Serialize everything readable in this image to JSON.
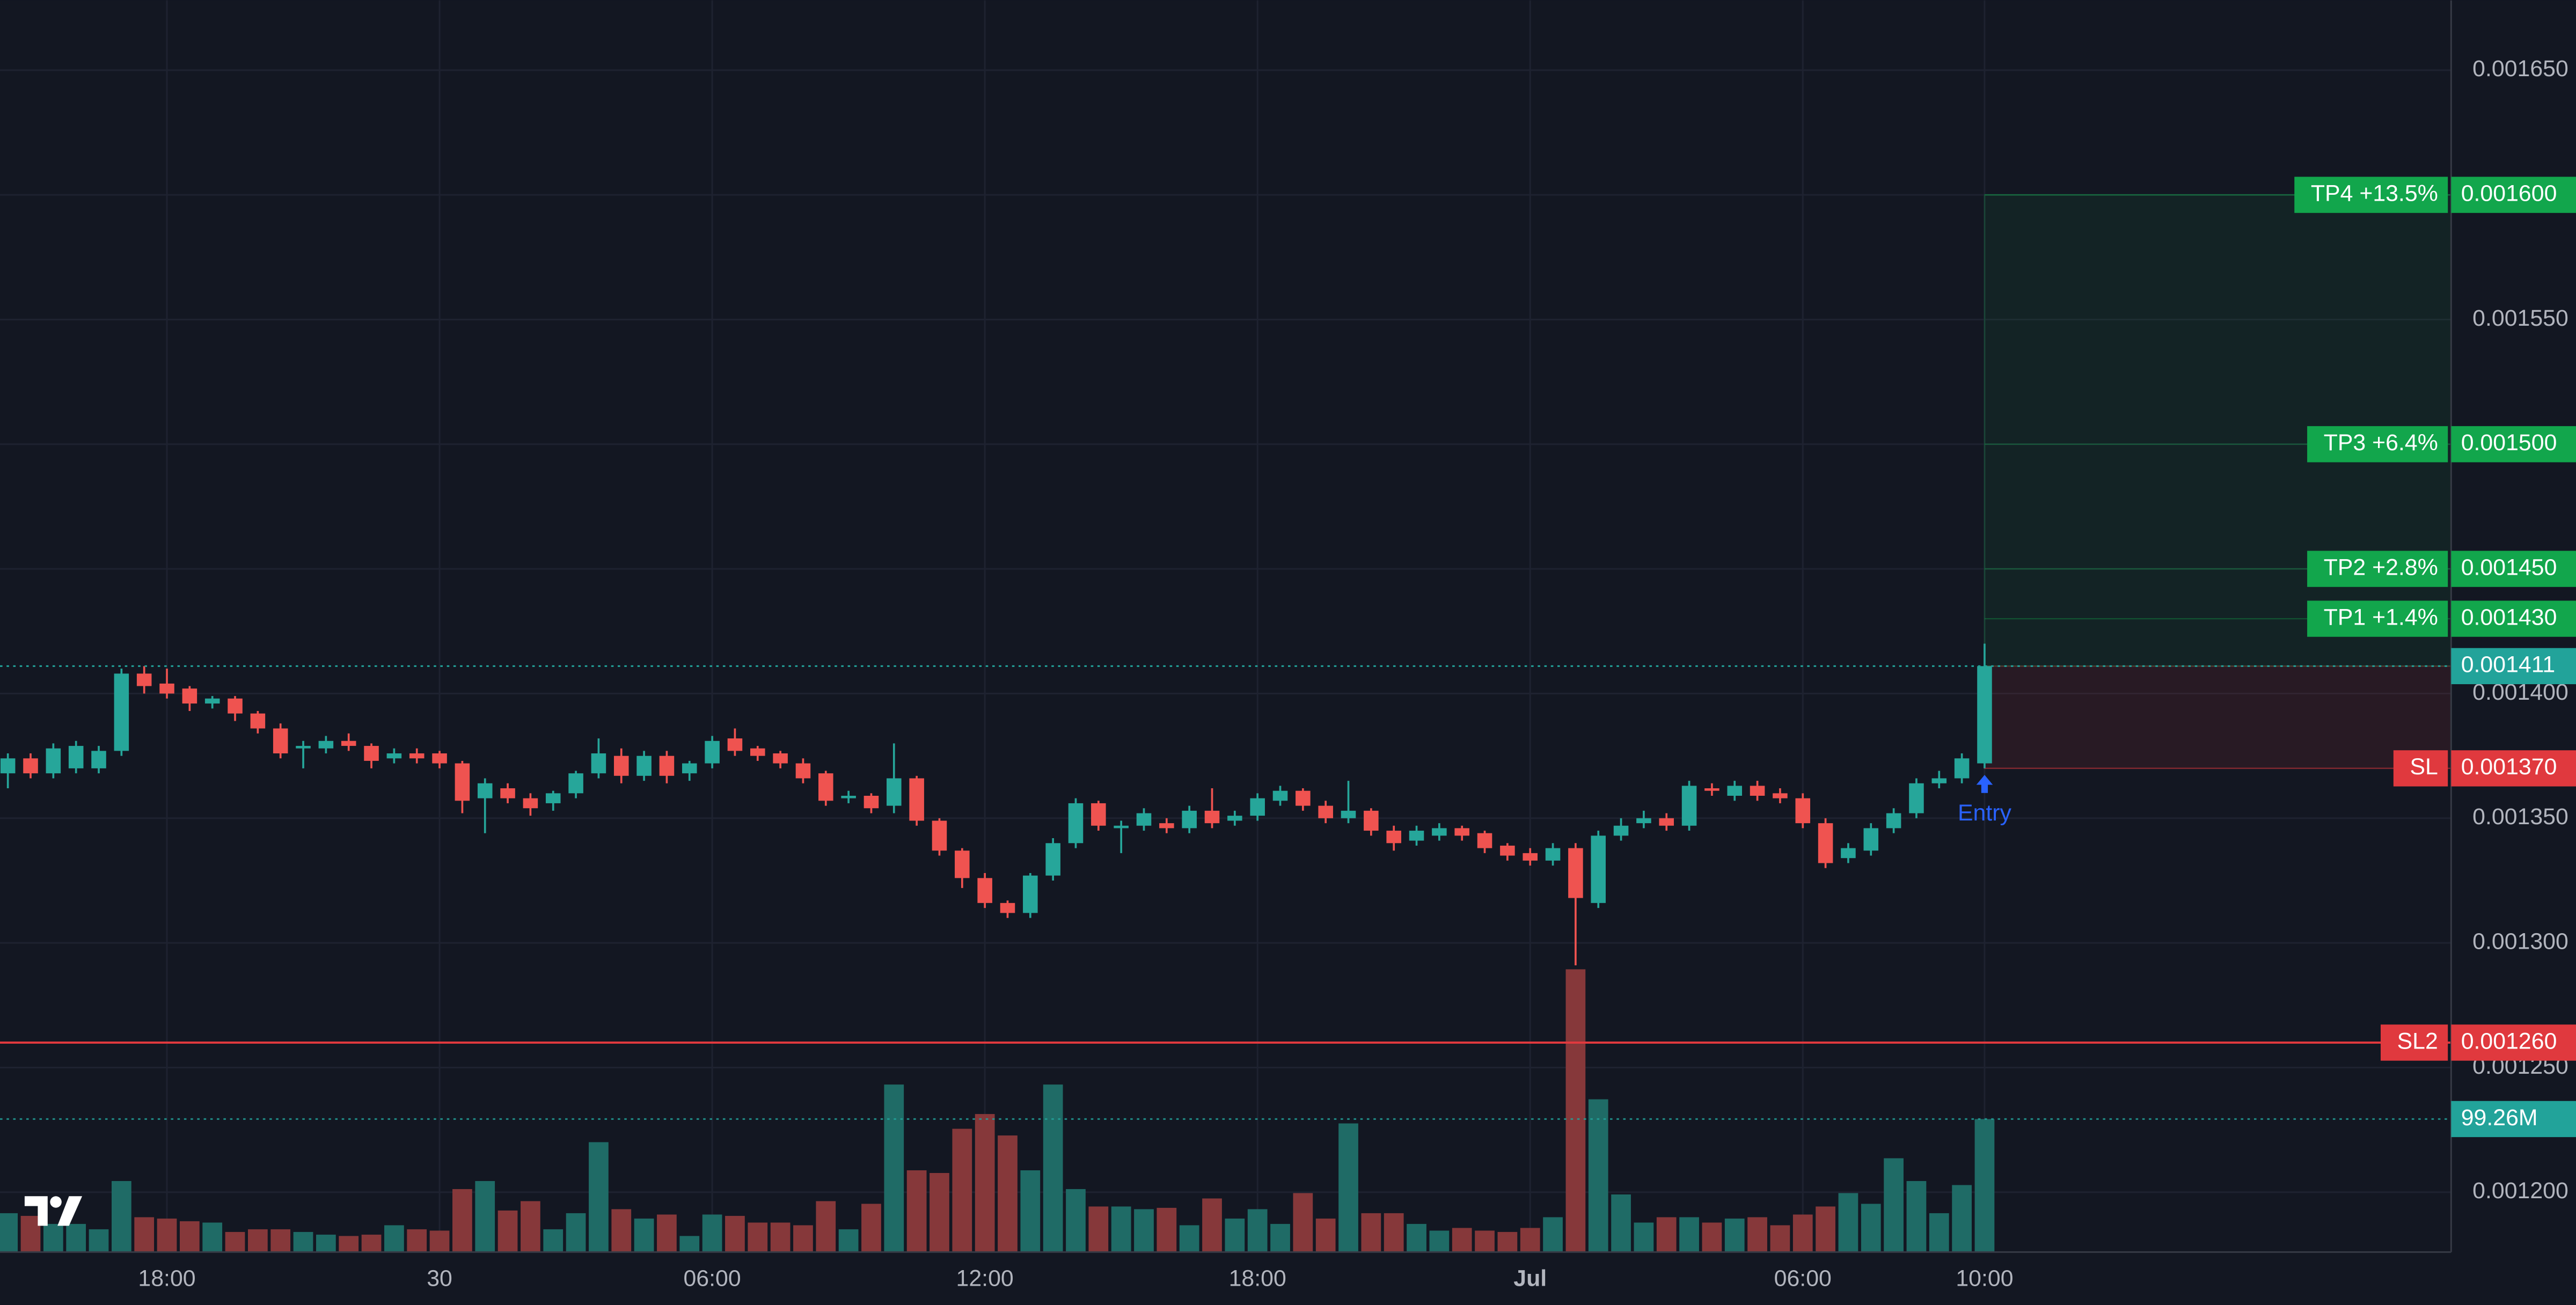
{
  "chart_data": {
    "type": "candlestick",
    "categories": [
      null,
      null,
      null,
      null,
      null,
      null,
      null,
      "18:00",
      null,
      null,
      null,
      null,
      null,
      null,
      null,
      null,
      null,
      null,
      null,
      "30",
      null,
      null,
      null,
      null,
      null,
      null,
      null,
      null,
      null,
      null,
      null,
      "06:00",
      null,
      null,
      null,
      null,
      null,
      null,
      null,
      null,
      null,
      null,
      null,
      "12:00",
      null,
      null,
      null,
      null,
      null,
      null,
      null,
      null,
      null,
      null,
      null,
      "18:00",
      null,
      null,
      null,
      null,
      null,
      null,
      null,
      null,
      null,
      null,
      null,
      "Jul",
      null,
      null,
      null,
      null,
      null,
      null,
      null,
      null,
      null,
      null,
      null,
      "06:00",
      null,
      null,
      null,
      null,
      null,
      null,
      null,
      "10:00"
    ],
    "ohlc": [
      [
        0.001368,
        0.001376,
        0.001362,
        0.001374
      ],
      [
        0.001374,
        0.001376,
        0.001366,
        0.001368
      ],
      [
        0.001368,
        0.00138,
        0.001366,
        0.001378
      ],
      [
        0.00137,
        0.001381,
        0.001368,
        0.001379
      ],
      [
        0.00137,
        0.001379,
        0.001368,
        0.001377
      ],
      [
        0.001377,
        0.00141,
        0.001375,
        0.001408
      ],
      [
        0.001408,
        0.001411,
        0.0014,
        0.001403
      ],
      [
        0.001404,
        0.00141,
        0.001398,
        0.0014
      ],
      [
        0.001402,
        0.001403,
        0.001393,
        0.001396
      ],
      [
        0.001396,
        0.001399,
        0.001394,
        0.001398
      ],
      [
        0.001398,
        0.001399,
        0.001389,
        0.001392
      ],
      [
        0.001392,
        0.001393,
        0.001384,
        0.001386
      ],
      [
        0.001386,
        0.001388,
        0.001374,
        0.001376
      ],
      [
        0.001378,
        0.001381,
        0.00137,
        0.001379
      ],
      [
        0.001378,
        0.001383,
        0.001376,
        0.001381
      ],
      [
        0.001381,
        0.001384,
        0.001377,
        0.001379
      ],
      [
        0.001379,
        0.00138,
        0.00137,
        0.001373
      ],
      [
        0.001374,
        0.001378,
        0.001372,
        0.001376
      ],
      [
        0.001376,
        0.001378,
        0.001372,
        0.001374
      ],
      [
        0.001376,
        0.001377,
        0.00137,
        0.001372
      ],
      [
        0.001372,
        0.001373,
        0.001352,
        0.001357
      ],
      [
        0.001358,
        0.001366,
        0.001344,
        0.001364
      ],
      [
        0.001362,
        0.001364,
        0.001356,
        0.001358
      ],
      [
        0.001358,
        0.00136,
        0.001351,
        0.001354
      ],
      [
        0.001356,
        0.001361,
        0.001353,
        0.00136
      ],
      [
        0.00136,
        0.001369,
        0.001358,
        0.001368
      ],
      [
        0.001368,
        0.001382,
        0.001366,
        0.001376
      ],
      [
        0.001375,
        0.001378,
        0.001364,
        0.001367
      ],
      [
        0.001367,
        0.001377,
        0.001365,
        0.001375
      ],
      [
        0.001375,
        0.001377,
        0.001364,
        0.001367
      ],
      [
        0.001368,
        0.001373,
        0.001365,
        0.001372
      ],
      [
        0.001372,
        0.001383,
        0.00137,
        0.001381
      ],
      [
        0.001382,
        0.001386,
        0.001375,
        0.001377
      ],
      [
        0.001378,
        0.001379,
        0.001373,
        0.001375
      ],
      [
        0.001376,
        0.001377,
        0.00137,
        0.001372
      ],
      [
        0.001372,
        0.001374,
        0.001364,
        0.001366
      ],
      [
        0.001368,
        0.001369,
        0.001355,
        0.001357
      ],
      [
        0.001358,
        0.001361,
        0.001356,
        0.001359
      ],
      [
        0.001359,
        0.00136,
        0.001352,
        0.001354
      ],
      [
        0.001355,
        0.00138,
        0.001352,
        0.001366
      ],
      [
        0.001366,
        0.001367,
        0.001347,
        0.001349
      ],
      [
        0.001349,
        0.00135,
        0.001335,
        0.001337
      ],
      [
        0.001337,
        0.001338,
        0.001322,
        0.001326
      ],
      [
        0.001326,
        0.001328,
        0.001314,
        0.001316
      ],
      [
        0.001316,
        0.001317,
        0.00131,
        0.001312
      ],
      [
        0.001312,
        0.001328,
        0.00131,
        0.001327
      ],
      [
        0.001327,
        0.001342,
        0.001325,
        0.00134
      ],
      [
        0.00134,
        0.001358,
        0.001338,
        0.001356
      ],
      [
        0.001356,
        0.001357,
        0.001345,
        0.001347
      ],
      [
        0.001346,
        0.001349,
        0.001336,
        0.001347
      ],
      [
        0.001347,
        0.001354,
        0.001345,
        0.001352
      ],
      [
        0.001348,
        0.00135,
        0.001344,
        0.001346
      ],
      [
        0.001346,
        0.001355,
        0.001344,
        0.001353
      ],
      [
        0.001353,
        0.001362,
        0.001346,
        0.001348
      ],
      [
        0.001349,
        0.001353,
        0.001347,
        0.001351
      ],
      [
        0.001351,
        0.00136,
        0.001349,
        0.001358
      ],
      [
        0.001357,
        0.001363,
        0.001355,
        0.001361
      ],
      [
        0.001361,
        0.001362,
        0.001353,
        0.001355
      ],
      [
        0.001355,
        0.001357,
        0.001348,
        0.00135
      ],
      [
        0.00135,
        0.001365,
        0.001348,
        0.001353
      ],
      [
        0.001353,
        0.001354,
        0.001343,
        0.001345
      ],
      [
        0.001345,
        0.001347,
        0.001337,
        0.00134
      ],
      [
        0.001341,
        0.001347,
        0.001339,
        0.001345
      ],
      [
        0.001343,
        0.001348,
        0.001341,
        0.001346
      ],
      [
        0.001346,
        0.001347,
        0.001341,
        0.001343
      ],
      [
        0.001344,
        0.001345,
        0.001336,
        0.001338
      ],
      [
        0.001339,
        0.00134,
        0.001333,
        0.001335
      ],
      [
        0.001336,
        0.001338,
        0.001331,
        0.001333
      ],
      [
        0.001333,
        0.00134,
        0.001331,
        0.001338
      ],
      [
        0.001338,
        0.00134,
        0.001291,
        0.001318
      ],
      [
        0.001316,
        0.001345,
        0.001314,
        0.001343
      ],
      [
        0.001343,
        0.00135,
        0.001341,
        0.001347
      ],
      [
        0.001348,
        0.001353,
        0.001346,
        0.00135
      ],
      [
        0.00135,
        0.001352,
        0.001345,
        0.001347
      ],
      [
        0.001347,
        0.001365,
        0.001345,
        0.001363
      ],
      [
        0.001362,
        0.001364,
        0.001359,
        0.001361
      ],
      [
        0.001359,
        0.001365,
        0.001357,
        0.001363
      ],
      [
        0.001363,
        0.001365,
        0.001357,
        0.001359
      ],
      [
        0.00136,
        0.001362,
        0.001356,
        0.001358
      ],
      [
        0.001358,
        0.00136,
        0.001346,
        0.001348
      ],
      [
        0.001348,
        0.00135,
        0.00133,
        0.001332
      ],
      [
        0.001334,
        0.00134,
        0.001332,
        0.001338
      ],
      [
        0.001337,
        0.001348,
        0.001335,
        0.001346
      ],
      [
        0.001346,
        0.001354,
        0.001344,
        0.001352
      ],
      [
        0.001352,
        0.001366,
        0.00135,
        0.001364
      ],
      [
        0.001364,
        0.001369,
        0.001362,
        0.001366
      ],
      [
        0.001366,
        0.001376,
        0.001364,
        0.001374
      ],
      [
        0.001372,
        0.00142,
        0.00137,
        0.001411
      ]
    ],
    "up_color": "#26a69a",
    "down_color": "#ef5350",
    "volume": {
      "values": [
        29,
        27,
        21,
        21,
        17,
        53,
        26,
        25,
        23,
        22,
        15,
        17,
        17,
        15,
        13,
        12,
        13,
        20,
        17,
        16,
        47,
        53,
        31,
        38,
        17,
        29,
        82,
        32,
        25,
        28,
        12,
        28,
        27,
        22,
        22,
        20,
        38,
        17,
        36,
        125,
        61,
        59,
        92,
        103,
        87,
        61,
        125,
        47,
        34,
        34,
        32,
        33,
        20,
        40,
        25,
        32,
        21,
        44,
        25,
        96,
        29,
        29,
        21,
        16,
        18,
        16,
        15,
        18,
        26,
        211,
        114,
        43,
        22,
        26,
        26,
        22,
        25,
        26,
        20,
        28,
        34,
        44,
        36,
        70,
        53,
        29,
        50,
        99.26
      ],
      "last_label": "99.26M",
      "ylim": [
        0,
        934
      ],
      "up_color": "#1f6b66",
      "down_color": "#86383a",
      "label_color": "#22a39a"
    },
    "ylim": [
      0.001176,
      0.001678
    ],
    "yticks": [
      {
        "value": 0.0012,
        "label": "0.001200"
      },
      {
        "value": 0.00125,
        "label": "0.001250"
      },
      {
        "value": 0.0013,
        "label": "0.001300"
      },
      {
        "value": 0.00135,
        "label": "0.001350"
      },
      {
        "value": 0.0014,
        "label": "0.001400"
      },
      {
        "value": 0.00145,
        "label": "0.001450"
      },
      {
        "value": 0.0015,
        "label": "0.001500"
      },
      {
        "value": 0.00155,
        "label": "0.001550"
      },
      {
        "value": 0.0016,
        "label": "0.001600"
      },
      {
        "value": 0.00165,
        "label": "0.001650"
      }
    ],
    "grid": true,
    "last_price": {
      "value": 0.001411,
      "label": "0.001411",
      "color": "#22a39a"
    },
    "levels": [
      {
        "name": "TP4 +13.5%",
        "value": 0.0016,
        "label": "0.001600",
        "color": "#12a64c",
        "extend": "zone"
      },
      {
        "name": "TP3 +6.4%",
        "value": 0.0015,
        "label": "0.001500",
        "color": "#12a64c",
        "extend": "zone"
      },
      {
        "name": "TP2 +2.8%",
        "value": 0.00145,
        "label": "0.001450",
        "color": "#12a64c",
        "extend": "zone"
      },
      {
        "name": "TP1 +1.4%",
        "value": 0.00143,
        "label": "0.001430",
        "color": "#12a64c",
        "extend": "zone"
      },
      {
        "name": "SL",
        "value": 0.00137,
        "label": "0.001370",
        "color": "#e0393e",
        "extend": "zone"
      },
      {
        "name": "SL2",
        "value": 0.00126,
        "label": "0.001260",
        "color": "#e0393e",
        "extend": "full"
      }
    ],
    "entry_label": "Entry",
    "entry_color": "#2962ff"
  }
}
